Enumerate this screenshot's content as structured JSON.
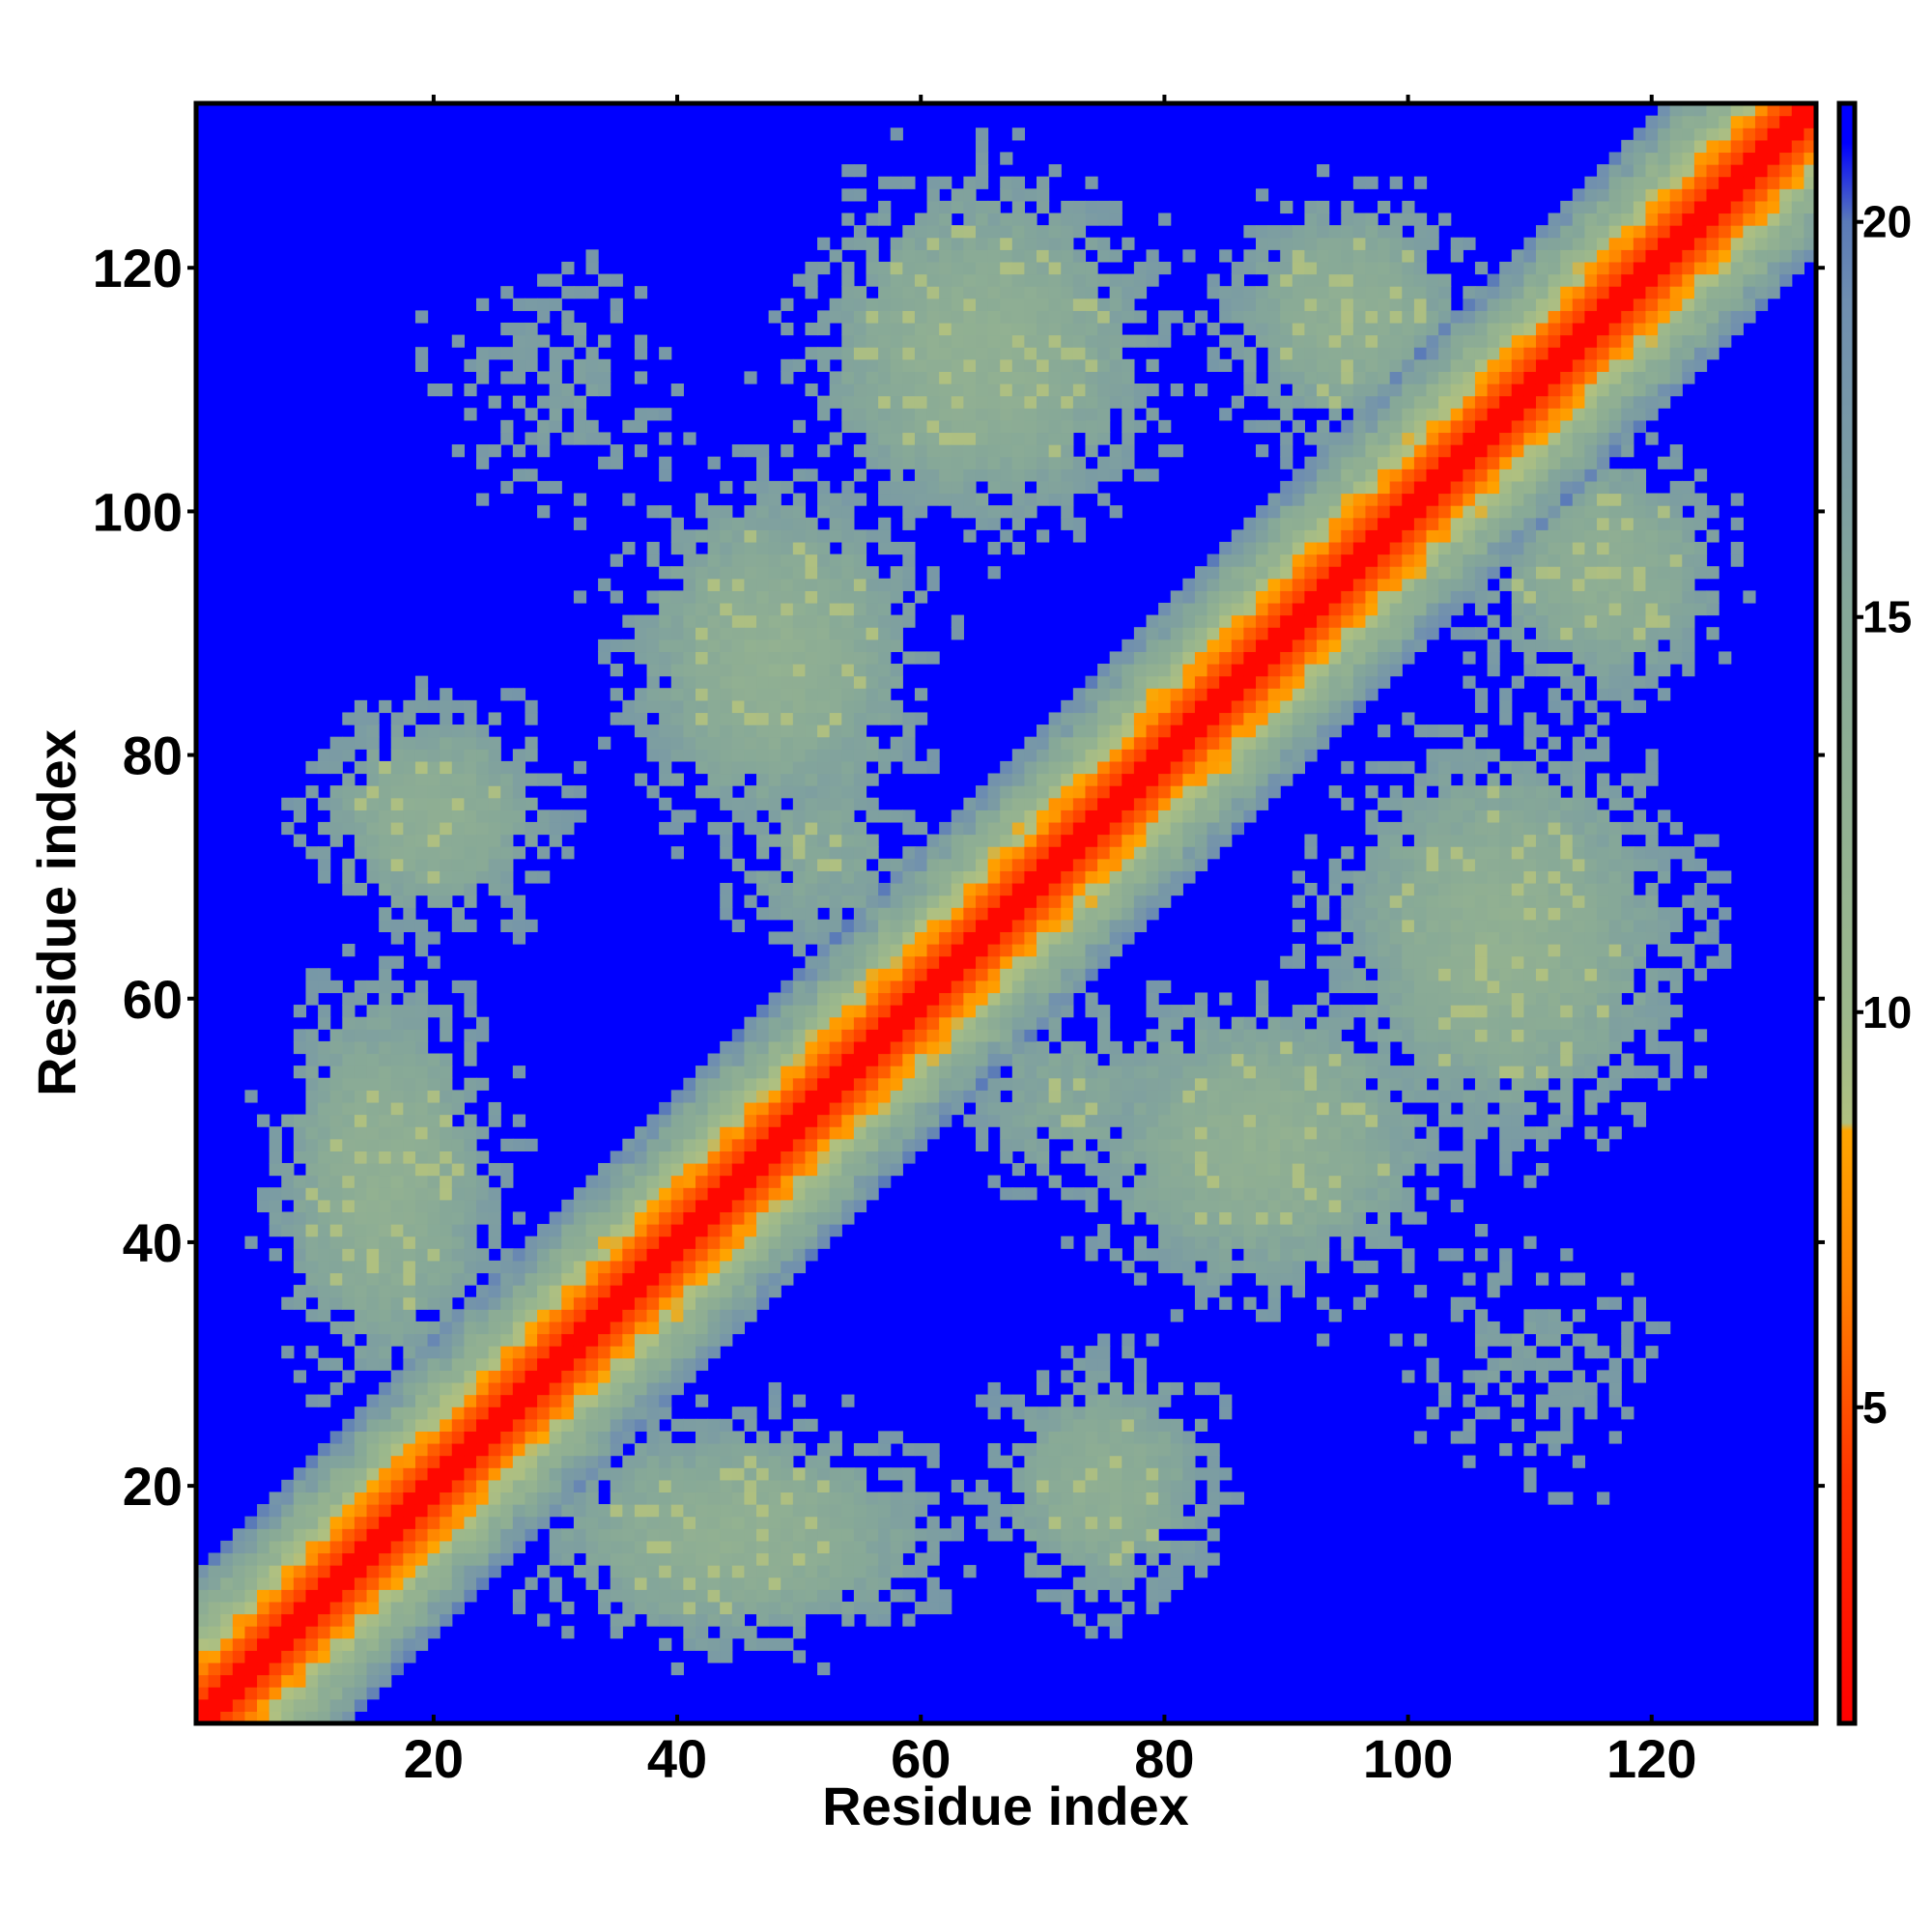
{
  "chart_data": {
    "type": "heatmap",
    "title": "",
    "xlabel": "Residue index",
    "ylabel": "Residue index",
    "xlim": [
      1,
      133
    ],
    "ylim": [
      1,
      133
    ],
    "n_residues": 133,
    "x_ticks": [
      20,
      40,
      60,
      80,
      100,
      120
    ],
    "y_ticks": [
      20,
      40,
      60,
      80,
      100,
      120
    ],
    "colorbar": {
      "range": [
        1,
        21.5
      ],
      "ticks": [
        5,
        10,
        15,
        20
      ],
      "stops": [
        {
          "value": 1,
          "color": "#ff0000"
        },
        {
          "value": 4,
          "color": "#ff3000"
        },
        {
          "value": 6.5,
          "color": "#ff8000"
        },
        {
          "value": 8.5,
          "color": "#ffa500"
        },
        {
          "value": 8.6,
          "color": "#b0c080"
        },
        {
          "value": 10,
          "color": "#9cb88c"
        },
        {
          "value": 15,
          "color": "#86a898"
        },
        {
          "value": 19,
          "color": "#6f8eb0"
        },
        {
          "value": 20,
          "color": "#5a7ab8"
        },
        {
          "value": 21,
          "color": "#0000ff"
        }
      ]
    },
    "background_color": "#0000ff",
    "value_description": "distance between residues (cutoff 21)",
    "contact_regions": [
      {
        "x": 65,
        "y": 113,
        "sx": 14,
        "sy": 14,
        "strength": 0.75
      },
      {
        "x": 48,
        "y": 88,
        "sx": 12,
        "sy": 14,
        "strength": 0.75
      },
      {
        "x": 20,
        "y": 75,
        "sx": 10,
        "sy": 9,
        "strength": 0.7
      },
      {
        "x": 16,
        "y": 45,
        "sx": 9,
        "sy": 16,
        "strength": 0.75
      },
      {
        "x": 30,
        "y": 110,
        "sx": 12,
        "sy": 12,
        "strength": 0.35
      },
      {
        "x": 108,
        "y": 65,
        "sx": 14,
        "sy": 16,
        "strength": 0.75
      },
      {
        "x": 88,
        "y": 48,
        "sx": 14,
        "sy": 12,
        "strength": 0.75
      },
      {
        "x": 75,
        "y": 20,
        "sx": 9,
        "sy": 10,
        "strength": 0.7
      },
      {
        "x": 45,
        "y": 16,
        "sx": 16,
        "sy": 9,
        "strength": 0.75
      },
      {
        "x": 110,
        "y": 30,
        "sx": 12,
        "sy": 12,
        "strength": 0.35
      },
      {
        "x": 95,
        "y": 116,
        "sx": 10,
        "sy": 10,
        "strength": 0.7
      },
      {
        "x": 116,
        "y": 95,
        "sx": 10,
        "sy": 10,
        "strength": 0.7
      },
      {
        "x": 72,
        "y": 52,
        "sx": 9,
        "sy": 9,
        "strength": 0.5
      },
      {
        "x": 52,
        "y": 72,
        "sx": 9,
        "sy": 9,
        "strength": 0.5
      }
    ]
  }
}
